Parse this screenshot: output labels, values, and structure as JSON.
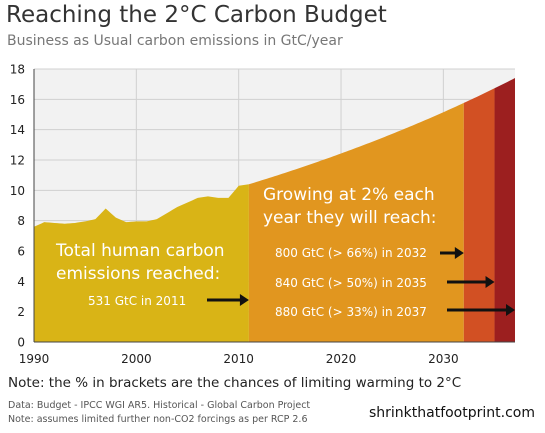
{
  "header": {
    "title": "Reaching the 2°C Carbon Budget",
    "subtitle": "Business as Usual carbon emissions in GtC/year"
  },
  "chart_data": {
    "type": "area",
    "xlim": [
      1990,
      2037
    ],
    "ylim": [
      0,
      18
    ],
    "x_ticks": [
      1990,
      2000,
      2010,
      2020,
      2030
    ],
    "y_ticks": [
      0,
      2,
      4,
      6,
      8,
      10,
      12,
      14,
      16,
      18
    ],
    "grid": true,
    "historical": {
      "x": [
        1990,
        1991,
        1992,
        1993,
        1994,
        1995,
        1996,
        1997,
        1998,
        1999,
        2000,
        2001,
        2002,
        2003,
        2004,
        2005,
        2006,
        2007,
        2008,
        2009,
        2010,
        2011
      ],
      "y": [
        7.6,
        7.9,
        7.85,
        7.8,
        7.85,
        7.95,
        8.1,
        8.8,
        8.2,
        7.9,
        7.95,
        7.95,
        8.1,
        8.5,
        8.9,
        9.2,
        9.5,
        9.6,
        9.5,
        9.5,
        10.3,
        10.4
      ]
    },
    "projection": {
      "start_year": 2011,
      "start_value": 10.4,
      "growth_rate": 0.02
    },
    "bands": [
      {
        "from": 1990,
        "to": 2011,
        "color": "#d9b416"
      },
      {
        "from": 2011,
        "to": 2032,
        "color": "#e1961f"
      },
      {
        "from": 2032,
        "to": 2035,
        "color": "#d25023"
      },
      {
        "from": 2035,
        "to": 2037,
        "color": "#9c1f1f"
      }
    ],
    "annotations": {
      "growing_line1": "Growing at 2% each",
      "growing_line2": "year they will reach:",
      "total_line1": "Total human carbon",
      "total_line2": "emissions reached:",
      "reached_2011": "531 GtC in 2011",
      "reach_2032": "800 GtC (> 66%) in 2032",
      "reach_2035": "840 GtC (> 50%) in 2035",
      "reach_2037": "880 GtC (> 33%) in 2037"
    }
  },
  "note": "Note: the % in brackets are the chances of limiting warming to 2°C",
  "footer": {
    "line1": "Data: Budget - IPCC WGI AR5. Historical - Global Carbon Project",
    "line2": "Note: assumes limited further non-CO2 forcings as per RCP 2.6",
    "site": "shrinkthatfootprint.com"
  }
}
